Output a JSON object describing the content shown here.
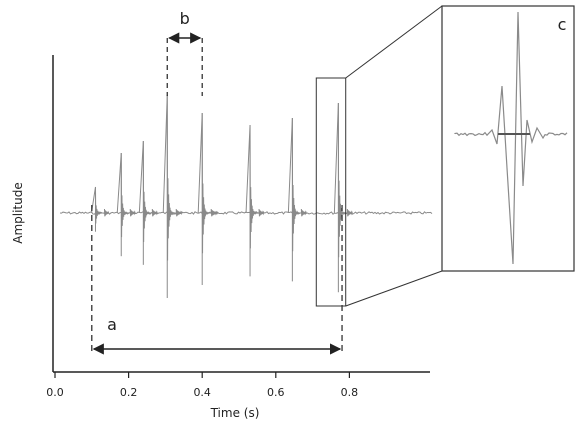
{
  "chart_data": {
    "type": "line",
    "title": "",
    "xlabel": "Time (s)",
    "ylabel": "Amplitude",
    "xlim": [
      0.0,
      0.95
    ],
    "xticks": [
      "0.0",
      "0.2",
      "0.4",
      "0.6",
      "0.8"
    ],
    "xtick_values": [
      0.0,
      0.2,
      0.4,
      0.6,
      0.8
    ],
    "grid": false,
    "series": [
      {
        "pulses": [
          {
            "time": 0.11,
            "amplitude": 0.26,
            "ring": 0.05
          },
          {
            "time": 0.18,
            "amplitude": 0.6,
            "ring": 0.06
          },
          {
            "time": 0.24,
            "amplitude": 0.72,
            "ring": 0.06
          },
          {
            "time": 0.305,
            "amplitude": 1.18,
            "ring": 0.07
          },
          {
            "time": 0.4,
            "amplitude": 1.0,
            "ring": 0.08
          },
          {
            "time": 0.53,
            "amplitude": 0.88,
            "ring": 0.06
          },
          {
            "time": 0.645,
            "amplitude": 0.95,
            "ring": 0.06
          },
          {
            "time": 0.77,
            "amplitude": 1.1,
            "ring": 0.06
          }
        ]
      }
    ],
    "annotations": [
      {
        "label": "a",
        "type": "interval",
        "from": 0.1,
        "to": 0.78
      },
      {
        "label": "b",
        "type": "interval",
        "from": 0.305,
        "to": 0.4
      },
      {
        "label": "c",
        "type": "zoom-inset",
        "from": 0.71,
        "to": 0.79
      }
    ],
    "colors": {
      "signal": "#8a8a8a",
      "axis": "#222222",
      "annotation": "#222222"
    }
  }
}
